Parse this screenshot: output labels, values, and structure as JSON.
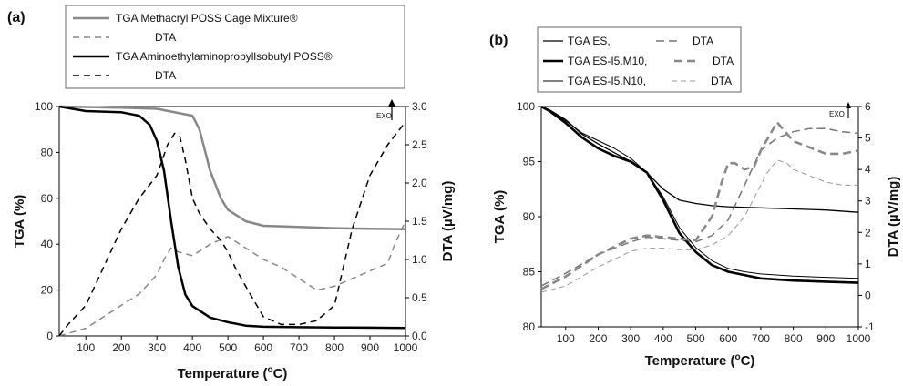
{
  "chart_data": [
    {
      "type": "line",
      "panel_label": "(a)",
      "xlabel": "Temperature (",
      "xlabel_sup": "o",
      "xlabel_tail": "C)",
      "ylabel_left": "TGA (%)",
      "ylabel_right": "DTA (µV/mg)",
      "xlim": [
        25,
        1000
      ],
      "ylim_left": [
        0,
        100
      ],
      "ylim_right": [
        0,
        3
      ],
      "xticks": [
        "100",
        "200",
        "300",
        "400",
        "500",
        "600",
        "700",
        "800",
        "900",
        "1000"
      ],
      "yticks_left": [
        "0",
        "20",
        "40",
        "60",
        "80",
        "100"
      ],
      "yticks_right": [
        "0.0",
        "0.5",
        "1.0",
        "1.5",
        "2.0",
        "2.5",
        "3.0"
      ],
      "exo_label": "EXO",
      "legend": {
        "placement": "top-center",
        "entries": [
          {
            "text": "TGA Methacryl POSS Cage Mixture®"
          },
          {
            "text": "DTA"
          },
          {
            "text": "TGA Aminoethylaminopropyllsobutyl POSS®"
          },
          {
            "text": "DTA"
          }
        ]
      },
      "series": [
        {
          "name": "TGA Methacryl POSS Cage Mixture®",
          "axis": "left",
          "color": "#888888",
          "dash": "",
          "width": 2.5,
          "x": [
            25,
            100,
            200,
            300,
            400,
            420,
            450,
            480,
            500,
            550,
            600,
            700,
            800,
            900,
            1000
          ],
          "y": [
            100,
            99.8,
            99.5,
            99,
            96,
            90,
            72,
            60,
            55,
            50,
            48,
            47.5,
            47,
            46.7,
            46.5
          ]
        },
        {
          "name": "DTA",
          "axis": "right",
          "color": "#888888",
          "dash": "7,5",
          "width": 1.5,
          "x": [
            25,
            100,
            150,
            200,
            250,
            300,
            320,
            340,
            360,
            400,
            450,
            500,
            550,
            600,
            650,
            700,
            750,
            800,
            850,
            900,
            950,
            970,
            1000
          ],
          "y": [
            0,
            0.1,
            0.25,
            0.4,
            0.55,
            0.8,
            1.0,
            1.15,
            1.1,
            1.05,
            1.2,
            1.3,
            1.15,
            1.0,
            0.9,
            0.75,
            0.6,
            0.65,
            0.75,
            0.85,
            0.95,
            1.2,
            1.5
          ]
        },
        {
          "name": "TGA Aminoethylaminopropyllsobutyl POSS®",
          "axis": "left",
          "color": "#000000",
          "dash": "",
          "width": 2.5,
          "x": [
            25,
            100,
            200,
            250,
            280,
            300,
            320,
            340,
            360,
            380,
            400,
            450,
            500,
            550,
            600,
            700,
            800,
            900,
            1000
          ],
          "y": [
            100,
            98,
            97.5,
            96,
            92,
            85,
            72,
            50,
            30,
            18,
            13,
            8,
            6,
            4.5,
            4,
            3.8,
            3.7,
            3.6,
            3.5
          ]
        },
        {
          "name": "DTA",
          "axis": "right",
          "color": "#000000",
          "dash": "7,5",
          "width": 1.5,
          "x": [
            25,
            50,
            100,
            150,
            200,
            250,
            300,
            330,
            350,
            365,
            380,
            400,
            420,
            450,
            480,
            500,
            520,
            550,
            600,
            650,
            700,
            750,
            800,
            850,
            900,
            950,
            1000
          ],
          "y": [
            0,
            0.15,
            0.4,
            0.9,
            1.4,
            1.8,
            2.1,
            2.5,
            2.65,
            2.6,
            2.3,
            1.8,
            1.6,
            1.4,
            1.25,
            1.1,
            0.9,
            0.65,
            0.25,
            0.15,
            0.15,
            0.2,
            0.4,
            1.4,
            2.1,
            2.5,
            2.8
          ]
        }
      ]
    },
    {
      "type": "line",
      "panel_label": "(b)",
      "xlabel": "Temperature (",
      "xlabel_sup": "o",
      "xlabel_tail": "C)",
      "ylabel_left": "TGA (%)",
      "ylabel_right": "DTA (µV/mg)",
      "xlim": [
        25,
        1000
      ],
      "ylim_left": [
        80,
        100
      ],
      "ylim_right": [
        -1,
        6
      ],
      "xticks": [
        "100",
        "200",
        "300",
        "400",
        "500",
        "600",
        "700",
        "800",
        "900",
        "1000"
      ],
      "yticks_left": [
        "80",
        "85",
        "90",
        "95",
        "100"
      ],
      "yticks_right": [
        "-1",
        "0",
        "1",
        "2",
        "3",
        "4",
        "5",
        "6"
      ],
      "exo_label": "EXO",
      "legend": {
        "placement": "top-center",
        "entries": [
          {
            "tga": "TGA ES,",
            "dta": "DTA"
          },
          {
            "tga": "TGA ES-I5.M10,",
            "dta": "DTA"
          },
          {
            "tga": "TGA ES-I5.N10,",
            "dta": "DTA"
          }
        ]
      },
      "series": [
        {
          "name": "TGA ES,",
          "axis": "left",
          "color": "#000000",
          "dash": "",
          "width": 1.3,
          "x": [
            25,
            50,
            100,
            150,
            200,
            250,
            300,
            350,
            400,
            450,
            500,
            550,
            600,
            700,
            800,
            900,
            1000
          ],
          "y": [
            100,
            99.7,
            98.8,
            97.5,
            96.6,
            95.8,
            95,
            94,
            92.5,
            91.5,
            91.2,
            91,
            90.9,
            90.8,
            90.7,
            90.6,
            90.4
          ]
        },
        {
          "name": "DTA",
          "axis": "right",
          "color": "#777777",
          "dash": "9,5",
          "width": 1.5,
          "x": [
            25,
            100,
            200,
            300,
            350,
            400,
            450,
            500,
            550,
            600,
            650,
            700,
            750,
            800,
            850,
            900,
            950,
            1000
          ],
          "y": [
            0.3,
            0.7,
            1.3,
            1.7,
            1.85,
            1.8,
            1.75,
            1.7,
            1.9,
            2.4,
            3.5,
            4.6,
            5.0,
            5.2,
            5.3,
            5.3,
            5.2,
            5.15
          ]
        },
        {
          "name": "TGA ES-I5.M10,",
          "axis": "left",
          "color": "#000000",
          "dash": "",
          "width": 2.6,
          "x": [
            25,
            50,
            100,
            150,
            200,
            250,
            300,
            350,
            400,
            450,
            500,
            550,
            600,
            650,
            700,
            800,
            900,
            1000
          ],
          "y": [
            100,
            99.6,
            98.5,
            97.2,
            96.2,
            95.5,
            95,
            94,
            91.5,
            88.5,
            86.8,
            85.6,
            85,
            84.7,
            84.4,
            84.2,
            84.1,
            84
          ]
        },
        {
          "name": "DTA",
          "axis": "right",
          "color": "#888888",
          "dash": "9,5",
          "width": 2.6,
          "x": [
            25,
            100,
            200,
            300,
            350,
            400,
            450,
            500,
            550,
            580,
            600,
            620,
            650,
            680,
            700,
            750,
            800,
            850,
            900,
            950,
            1000
          ],
          "y": [
            0.2,
            0.6,
            1.3,
            1.8,
            1.9,
            1.85,
            1.8,
            1.75,
            2.5,
            3.6,
            4.2,
            4.2,
            4.0,
            4.1,
            4.6,
            5.5,
            4.9,
            4.7,
            4.5,
            4.5,
            4.6
          ]
        },
        {
          "name": "TGA ES-I5.N10,",
          "axis": "left",
          "color": "#000000",
          "dash": "",
          "width": 1.0,
          "x": [
            25,
            50,
            100,
            150,
            200,
            250,
            300,
            350,
            400,
            450,
            500,
            550,
            600,
            650,
            700,
            800,
            900,
            1000
          ],
          "y": [
            100,
            99.6,
            98.7,
            97.6,
            96.9,
            96.2,
            95.3,
            94,
            91.8,
            89,
            87.2,
            86,
            85.3,
            85,
            84.8,
            84.6,
            84.5,
            84.4
          ]
        },
        {
          "name": "DTA",
          "axis": "right",
          "color": "#999999",
          "dash": "6,4",
          "width": 1.0,
          "x": [
            25,
            100,
            200,
            300,
            350,
            400,
            450,
            500,
            550,
            600,
            650,
            700,
            720,
            750,
            780,
            800,
            850,
            900,
            950,
            1000
          ],
          "y": [
            0.1,
            0.3,
            0.9,
            1.4,
            1.5,
            1.5,
            1.45,
            1.45,
            1.6,
            1.9,
            2.5,
            3.5,
            3.9,
            4.3,
            4.2,
            4.0,
            3.8,
            3.6,
            3.5,
            3.5
          ]
        }
      ]
    }
  ]
}
